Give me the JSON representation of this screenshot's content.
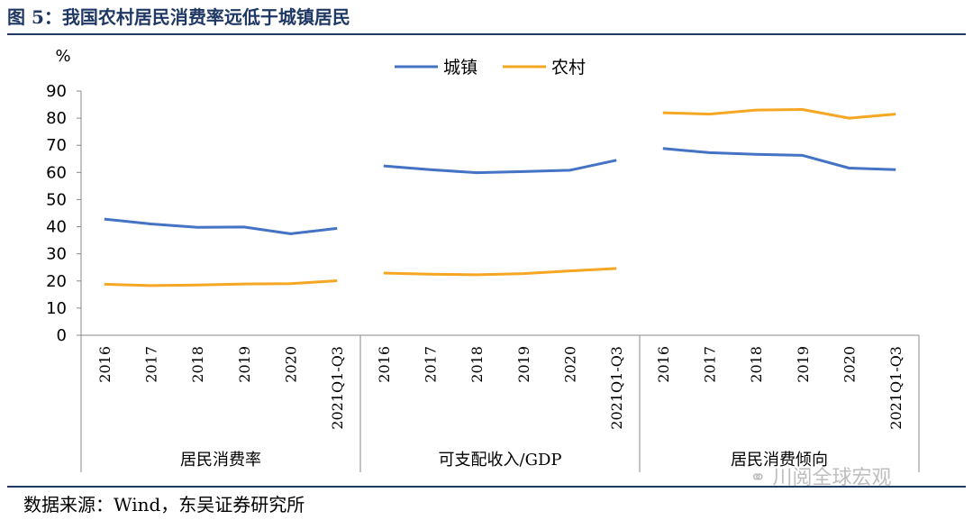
{
  "figure": {
    "title": "图 5：我国农村居民消费率远低于城镇居民",
    "source": "数据来源：Wind，东吴证券研究所",
    "watermark": "川阅全球宏观",
    "watermark_icon": "wechat-icon"
  },
  "chart_data": {
    "type": "line",
    "y_unit": "%",
    "ylim": [
      0,
      90
    ],
    "yticks": [
      0,
      10,
      20,
      30,
      40,
      50,
      60,
      70,
      80,
      90
    ],
    "grid": false,
    "legend_position": "top-center",
    "groups": [
      {
        "name": "居民消费率",
        "categories": [
          "2016",
          "2017",
          "2018",
          "2019",
          "2020",
          "2021Q1-Q3"
        ]
      },
      {
        "name": "可支配收入/GDP",
        "categories": [
          "2016",
          "2017",
          "2018",
          "2019",
          "2020",
          "2021Q1-Q3"
        ]
      },
      {
        "name": "居民消费倾向",
        "categories": [
          "2016",
          "2017",
          "2018",
          "2019",
          "2020",
          "2021Q1-Q3"
        ]
      }
    ],
    "series": [
      {
        "name": "城镇",
        "color": "#4472c4",
        "values": [
          [
            42.8,
            41.0,
            39.8,
            39.9,
            37.4,
            39.4
          ],
          [
            62.4,
            61.0,
            59.9,
            60.3,
            60.8,
            64.5
          ],
          [
            68.8,
            67.3,
            66.7,
            66.3,
            61.6,
            61.0
          ]
        ]
      },
      {
        "name": "农村",
        "color": "#f5a623",
        "values": [
          [
            18.8,
            18.3,
            18.5,
            18.9,
            19.0,
            20.1
          ],
          [
            22.9,
            22.5,
            22.3,
            22.7,
            23.7,
            24.6
          ],
          [
            82.0,
            81.5,
            83.0,
            83.2,
            80.0,
            81.5
          ]
        ]
      }
    ]
  }
}
